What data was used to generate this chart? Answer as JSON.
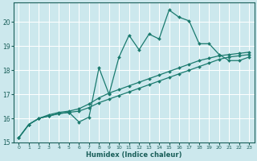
{
  "xlabel": "Humidex (Indice chaleur)",
  "background_color": "#cce8ed",
  "grid_color": "#ffffff",
  "line_color": "#1a7a6e",
  "xlim": [
    -0.5,
    23.5
  ],
  "ylim": [
    15,
    20.8
  ],
  "yticks": [
    15,
    16,
    17,
    18,
    19,
    20
  ],
  "xticks": [
    0,
    1,
    2,
    3,
    4,
    5,
    6,
    7,
    8,
    9,
    10,
    11,
    12,
    13,
    14,
    15,
    16,
    17,
    18,
    19,
    20,
    21,
    22,
    23
  ],
  "series1_x": [
    0,
    1,
    2,
    3,
    4,
    5,
    6,
    7,
    8,
    9,
    10,
    11,
    12,
    13,
    14,
    15,
    16,
    17,
    18,
    19,
    20,
    21,
    22,
    23
  ],
  "series1_y": [
    15.2,
    15.75,
    16.0,
    16.1,
    16.2,
    16.25,
    15.85,
    16.05,
    18.1,
    17.0,
    18.55,
    19.45,
    18.85,
    19.5,
    19.3,
    20.5,
    20.2,
    20.05,
    19.1,
    19.1,
    18.65,
    18.4,
    18.4,
    18.55
  ],
  "series2_x": [
    0,
    1,
    2,
    3,
    4,
    5,
    6,
    7,
    8,
    9,
    10,
    11,
    12,
    13,
    14,
    15,
    16,
    17,
    18,
    19,
    20,
    21,
    22,
    23
  ],
  "series2_y": [
    15.2,
    15.75,
    16.0,
    16.1,
    16.2,
    16.25,
    16.3,
    16.45,
    16.65,
    16.8,
    16.95,
    17.1,
    17.25,
    17.4,
    17.55,
    17.7,
    17.85,
    18.0,
    18.15,
    18.3,
    18.45,
    18.55,
    18.6,
    18.65
  ],
  "series3_x": [
    0,
    1,
    2,
    3,
    4,
    5,
    6,
    7,
    8,
    9,
    10,
    11,
    12,
    13,
    14,
    15,
    16,
    17,
    18,
    19,
    20,
    21,
    22,
    23
  ],
  "series3_y": [
    15.2,
    15.75,
    16.0,
    16.15,
    16.25,
    16.3,
    16.4,
    16.6,
    16.85,
    17.05,
    17.2,
    17.35,
    17.5,
    17.65,
    17.8,
    17.95,
    18.1,
    18.25,
    18.4,
    18.5,
    18.6,
    18.65,
    18.7,
    18.75
  ]
}
